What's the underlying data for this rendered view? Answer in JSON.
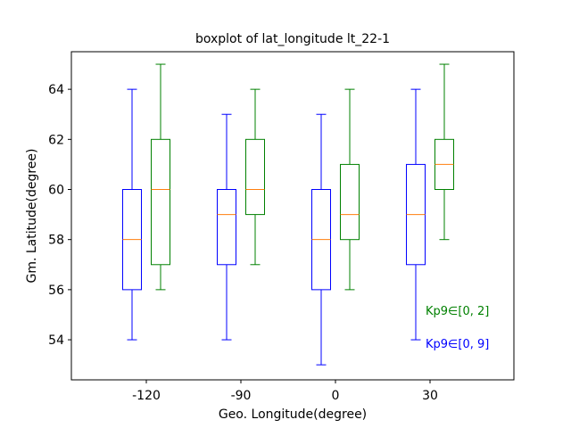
{
  "chart_data": {
    "type": "boxplot",
    "title": "boxplot of lat_longitude lt_22-1",
    "xlabel": "Geo. Longitude(degree)",
    "ylabel": "Gm. Latitude(degree)",
    "categories": [
      "-120",
      "-90",
      "0",
      "30"
    ],
    "ylim": [
      52.4,
      65.5
    ],
    "yticks": [
      54,
      56,
      58,
      60,
      62,
      64
    ],
    "grid": false,
    "series": [
      {
        "name": "Kp9∈[0, 9]",
        "color": "#0000ff",
        "boxes": [
          {
            "whislo": 54,
            "q1": 56,
            "med": 58,
            "q3": 60,
            "whishi": 64
          },
          {
            "whislo": 54,
            "q1": 57,
            "med": 59,
            "q3": 60,
            "whishi": 63
          },
          {
            "whislo": 53,
            "q1": 56,
            "med": 58,
            "q3": 60,
            "whishi": 63
          },
          {
            "whislo": 54,
            "q1": 57,
            "med": 59,
            "q3": 61,
            "whishi": 64
          }
        ]
      },
      {
        "name": "Kp9∈[0, 2]",
        "color": "#008000",
        "boxes": [
          {
            "whislo": 56,
            "q1": 57,
            "med": 60,
            "q3": 62,
            "whishi": 65
          },
          {
            "whislo": 57,
            "q1": 59,
            "med": 60,
            "q3": 62,
            "whishi": 64
          },
          {
            "whislo": 56,
            "q1": 58,
            "med": 59,
            "q3": 61,
            "whishi": 64
          },
          {
            "whislo": 58,
            "q1": 60,
            "med": 61,
            "q3": 62,
            "whishi": 65
          }
        ]
      }
    ],
    "median_color": "#ff7f0e",
    "legend_placement": "bottom-right"
  }
}
